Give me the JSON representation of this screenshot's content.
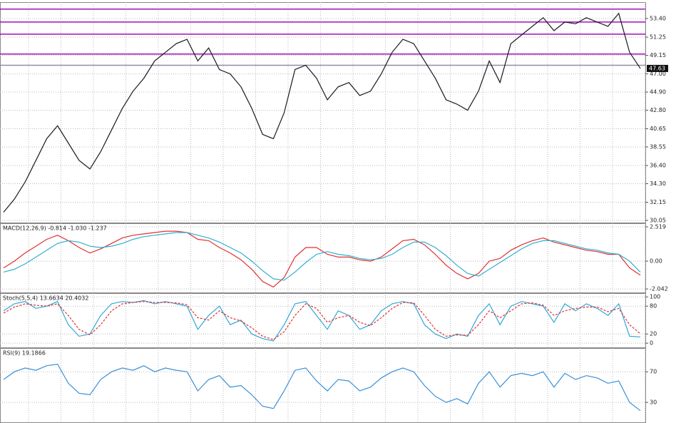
{
  "chart_data": [
    {
      "type": "line",
      "ylim": [
        29.8,
        55.3
      ],
      "yticks": [
        {
          "value": 53.4,
          "label": "53.40"
        },
        51.25,
        49.15,
        {
          "value": 47,
          "label": "47.00"
        },
        {
          "value": 44.9,
          "label": "44.90"
        },
        {
          "value": 42.8,
          "label": "42.80"
        },
        40.65,
        38.55,
        {
          "value": 36.4,
          "label": "36.40"
        },
        {
          "value": 34.3,
          "label": "34.30"
        },
        32.15,
        30.05
      ],
      "grid": true,
      "current_price": 47.63,
      "hlines": [
        {
          "value": 54.5,
          "color": "#a010c0"
        },
        {
          "value": 53.0,
          "color": "#a010c0"
        },
        {
          "value": 51.6,
          "color": "#a010c0"
        },
        {
          "value": 49.3,
          "color": "#a010c0"
        },
        {
          "value": 48.0,
          "color": "#9090a0"
        }
      ],
      "series": [
        {
          "color": "#1a1a1a",
          "values": [
            31.0,
            32.5,
            34.5,
            37.0,
            39.5,
            41.0,
            39.0,
            37.0,
            36.0,
            38.0,
            40.5,
            43.0,
            45.0,
            46.5,
            48.5,
            49.5,
            50.5,
            51.0,
            48.5,
            50.0,
            47.5,
            47.0,
            45.5,
            43.0,
            40.0,
            39.5,
            42.5,
            47.5,
            48.0,
            46.5,
            44.0,
            45.5,
            46.0,
            44.5,
            45.0,
            47.0,
            49.5,
            51.0,
            50.5,
            48.5,
            46.5,
            44.0,
            43.5,
            42.8,
            45.0,
            48.5,
            46.0,
            50.5,
            51.5,
            52.5,
            53.5,
            52.0,
            53.0,
            52.8,
            53.5,
            53.0,
            52.5,
            54.0,
            49.5,
            47.63
          ]
        }
      ]
    },
    {
      "type": "line",
      "title": "MACD(12,26,9) -0.814 -1.030 -1.237",
      "ylim": [
        -2.3,
        2.78
      ],
      "yticks": [
        2.519,
        {
          "value": 0,
          "label": "0.00"
        },
        -2.042
      ],
      "grid": true,
      "series": [
        {
          "color": "#e03030",
          "values": [
            -0.5,
            0.0,
            0.6,
            1.1,
            1.6,
            1.9,
            1.5,
            1.0,
            0.6,
            0.9,
            1.3,
            1.7,
            1.9,
            2.0,
            2.1,
            2.2,
            2.2,
            2.1,
            1.6,
            1.5,
            1.0,
            0.6,
            0.1,
            -0.6,
            -1.5,
            -1.9,
            -1.2,
            0.3,
            1.0,
            1.0,
            0.5,
            0.3,
            0.3,
            0.1,
            0.0,
            0.3,
            0.9,
            1.5,
            1.6,
            1.2,
            0.5,
            -0.3,
            -0.9,
            -1.3,
            -0.9,
            0.0,
            0.2,
            0.8,
            1.2,
            1.5,
            1.7,
            1.4,
            1.2,
            1.0,
            0.8,
            0.7,
            0.5,
            0.5,
            -0.5,
            -1.03
          ]
        },
        {
          "color": "#30b0d0",
          "values": [
            -0.8,
            -0.6,
            -0.2,
            0.3,
            0.8,
            1.3,
            1.5,
            1.4,
            1.1,
            1.0,
            1.1,
            1.3,
            1.6,
            1.8,
            1.9,
            2.0,
            2.1,
            2.1,
            1.9,
            1.7,
            1.4,
            1.0,
            0.6,
            0.0,
            -0.7,
            -1.3,
            -1.4,
            -0.8,
            -0.1,
            0.5,
            0.7,
            0.5,
            0.4,
            0.2,
            0.1,
            0.2,
            0.5,
            1.0,
            1.4,
            1.4,
            1.0,
            0.4,
            -0.3,
            -0.9,
            -1.1,
            -0.6,
            -0.1,
            0.4,
            0.9,
            1.3,
            1.5,
            1.5,
            1.3,
            1.1,
            0.9,
            0.8,
            0.6,
            0.5,
            0.0,
            -0.814
          ]
        }
      ]
    },
    {
      "type": "line",
      "title": "Stoch(5,5,4) 13.6634 20.4032",
      "ylim": [
        -9,
        108
      ],
      "yticks": [
        100,
        80,
        20,
        0
      ],
      "grid": true,
      "series": [
        {
          "color": "#30a8d8",
          "values": [
            70,
            85,
            90,
            75,
            80,
            90,
            40,
            15,
            20,
            60,
            85,
            90,
            88,
            92,
            85,
            90,
            85,
            80,
            30,
            60,
            80,
            40,
            50,
            20,
            10,
            5,
            40,
            85,
            90,
            60,
            30,
            70,
            60,
            30,
            40,
            70,
            85,
            90,
            85,
            40,
            20,
            10,
            20,
            15,
            60,
            85,
            40,
            80,
            90,
            85,
            80,
            45,
            85,
            70,
            85,
            75,
            60,
            85,
            15,
            13.6634
          ]
        },
        {
          "color": "#e03030",
          "dash": true,
          "values": [
            65,
            78,
            85,
            82,
            80,
            85,
            60,
            30,
            18,
            40,
            70,
            85,
            88,
            90,
            88,
            88,
            87,
            83,
            55,
            50,
            70,
            55,
            48,
            33,
            15,
            8,
            25,
            60,
            85,
            75,
            45,
            55,
            60,
            45,
            38,
            55,
            75,
            88,
            87,
            60,
            30,
            15,
            18,
            17,
            40,
            70,
            55,
            70,
            85,
            87,
            82,
            60,
            70,
            75,
            78,
            78,
            68,
            75,
            40,
            20.4032
          ]
        }
      ]
    },
    {
      "type": "line",
      "title": "RSI(9) 19.1866",
      "ylim": [
        4,
        101
      ],
      "yticks": [
        70,
        30
      ],
      "grid": true,
      "series": [
        {
          "color": "#3a8fd8",
          "values": [
            60,
            70,
            75,
            72,
            78,
            80,
            55,
            42,
            40,
            60,
            70,
            75,
            72,
            78,
            70,
            75,
            72,
            70,
            45,
            60,
            65,
            50,
            52,
            40,
            25,
            22,
            45,
            72,
            75,
            58,
            45,
            60,
            58,
            45,
            50,
            62,
            70,
            75,
            70,
            52,
            38,
            30,
            35,
            28,
            55,
            70,
            50,
            65,
            68,
            65,
            70,
            50,
            68,
            60,
            65,
            62,
            55,
            58,
            30,
            19.1866
          ]
        }
      ]
    }
  ]
}
